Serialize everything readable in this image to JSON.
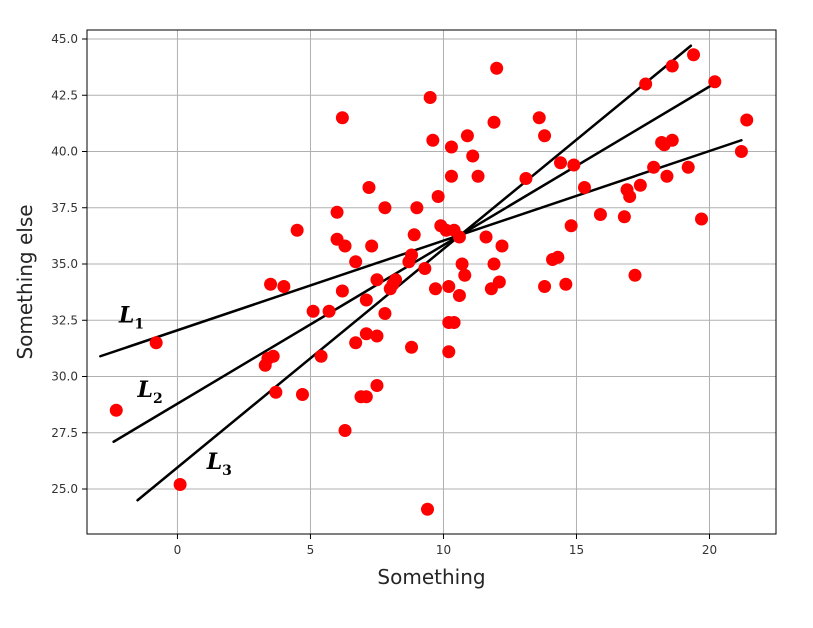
{
  "chart_data": {
    "type": "scatter",
    "title": "",
    "xlabel": "Something",
    "ylabel": "Something else",
    "xlim": [
      -3.4,
      22.5
    ],
    "ylim": [
      23.0,
      45.4
    ],
    "xticks": [
      0,
      5,
      10,
      15,
      20
    ],
    "yticks": [
      25.0,
      27.5,
      30.0,
      32.5,
      35.0,
      37.5,
      40.0,
      42.5,
      45.0
    ],
    "grid": true,
    "point_color": "#ff0000",
    "line_color": "#000000",
    "points": [
      [
        -2.3,
        28.5
      ],
      [
        -0.8,
        31.5
      ],
      [
        0.1,
        25.2
      ],
      [
        3.3,
        30.5
      ],
      [
        3.4,
        30.8
      ],
      [
        3.5,
        34.1
      ],
      [
        3.6,
        30.9
      ],
      [
        3.7,
        29.3
      ],
      [
        4.0,
        34.0
      ],
      [
        4.5,
        36.5
      ],
      [
        4.7,
        29.2
      ],
      [
        5.1,
        32.9
      ],
      [
        5.4,
        30.9
      ],
      [
        5.7,
        32.9
      ],
      [
        6.0,
        37.3
      ],
      [
        6.0,
        36.1
      ],
      [
        6.2,
        33.8
      ],
      [
        6.2,
        41.5
      ],
      [
        6.3,
        35.8
      ],
      [
        6.3,
        27.6
      ],
      [
        6.7,
        35.1
      ],
      [
        6.7,
        31.5
      ],
      [
        6.9,
        29.1
      ],
      [
        7.1,
        29.1
      ],
      [
        7.1,
        33.4
      ],
      [
        7.1,
        31.9
      ],
      [
        7.2,
        38.4
      ],
      [
        7.3,
        35.8
      ],
      [
        7.5,
        34.3
      ],
      [
        7.5,
        31.8
      ],
      [
        7.5,
        29.6
      ],
      [
        7.8,
        37.5
      ],
      [
        7.8,
        32.8
      ],
      [
        8.0,
        33.9
      ],
      [
        8.1,
        34.1
      ],
      [
        8.2,
        34.3
      ],
      [
        8.7,
        35.1
      ],
      [
        8.8,
        35.4
      ],
      [
        8.8,
        31.3
      ],
      [
        8.9,
        36.3
      ],
      [
        9.0,
        37.5
      ],
      [
        9.3,
        34.8
      ],
      [
        9.4,
        24.1
      ],
      [
        9.5,
        42.4
      ],
      [
        9.6,
        40.5
      ],
      [
        9.7,
        33.9
      ],
      [
        9.8,
        38.0
      ],
      [
        9.9,
        36.7
      ],
      [
        10.1,
        36.5
      ],
      [
        10.2,
        34.0
      ],
      [
        10.2,
        31.1
      ],
      [
        10.2,
        32.4
      ],
      [
        10.3,
        38.9
      ],
      [
        10.3,
        40.2
      ],
      [
        10.4,
        36.5
      ],
      [
        10.4,
        32.4
      ],
      [
        10.6,
        36.2
      ],
      [
        10.6,
        33.6
      ],
      [
        10.7,
        35.0
      ],
      [
        10.8,
        34.5
      ],
      [
        10.9,
        40.7
      ],
      [
        11.1,
        39.8
      ],
      [
        11.3,
        38.9
      ],
      [
        11.6,
        36.2
      ],
      [
        11.8,
        33.9
      ],
      [
        11.9,
        35.0
      ],
      [
        11.9,
        41.3
      ],
      [
        12.0,
        43.7
      ],
      [
        12.1,
        34.2
      ],
      [
        12.2,
        35.8
      ],
      [
        13.1,
        38.8
      ],
      [
        13.6,
        41.5
      ],
      [
        13.8,
        34.0
      ],
      [
        13.8,
        40.7
      ],
      [
        14.1,
        35.2
      ],
      [
        14.3,
        35.3
      ],
      [
        14.4,
        39.5
      ],
      [
        14.6,
        34.1
      ],
      [
        14.8,
        36.7
      ],
      [
        14.9,
        39.4
      ],
      [
        15.3,
        38.4
      ],
      [
        15.9,
        37.2
      ],
      [
        16.8,
        37.1
      ],
      [
        16.9,
        38.3
      ],
      [
        17.0,
        38.0
      ],
      [
        17.2,
        34.5
      ],
      [
        17.4,
        38.5
      ],
      [
        17.6,
        43.0
      ],
      [
        17.9,
        39.3
      ],
      [
        18.2,
        40.4
      ],
      [
        18.3,
        40.3
      ],
      [
        18.4,
        38.9
      ],
      [
        18.6,
        40.5
      ],
      [
        18.6,
        43.8
      ],
      [
        19.2,
        39.3
      ],
      [
        19.4,
        44.3
      ],
      [
        19.7,
        37.0
      ],
      [
        20.2,
        43.1
      ],
      [
        21.2,
        40.0
      ],
      [
        21.4,
        41.4
      ]
    ],
    "lines": [
      {
        "name": "L1",
        "letter": "L",
        "sub": "1",
        "start": [
          -2.9,
          30.9
        ],
        "end": [
          21.2,
          40.5
        ],
        "label_at": [
          -2.2,
          32.4
        ]
      },
      {
        "name": "L2",
        "letter": "L",
        "sub": "2",
        "start": [
          -2.4,
          27.1
        ],
        "end": [
          20.3,
          43.1
        ],
        "label_at": [
          -1.5,
          29.1
        ]
      },
      {
        "name": "L3",
        "letter": "L",
        "sub": "3",
        "start": [
          -1.5,
          24.5
        ],
        "end": [
          19.3,
          44.7
        ],
        "label_at": [
          1.1,
          25.9
        ]
      }
    ]
  }
}
